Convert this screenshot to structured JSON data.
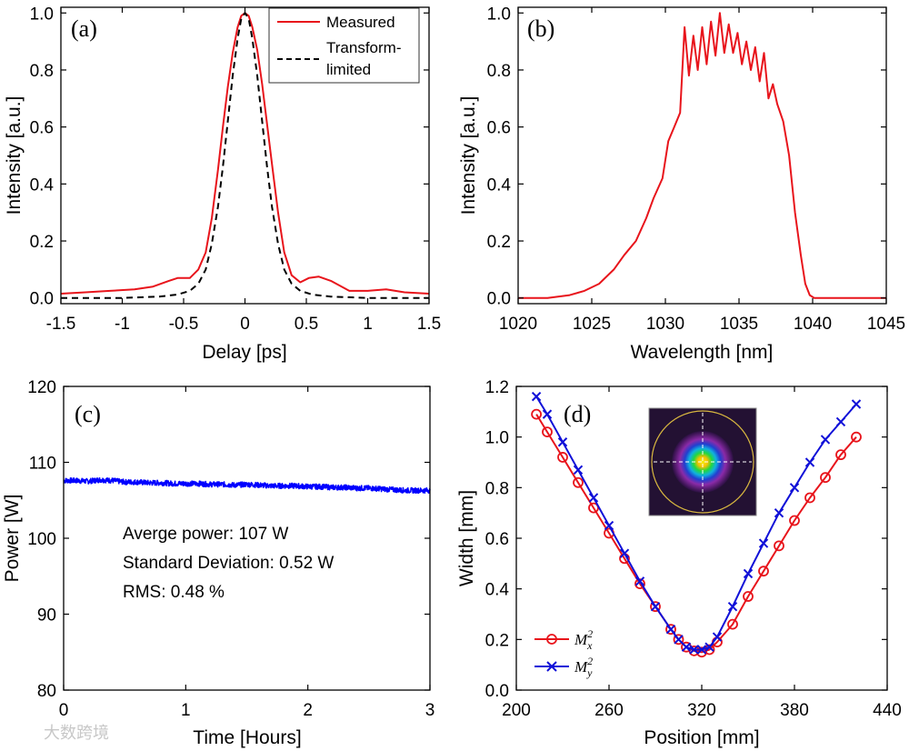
{
  "chart_data": [
    {
      "id": "a",
      "type": "line",
      "panel_label": "(a)",
      "xlabel": "Delay [ps]",
      "ylabel": "Intensity [a.u.]",
      "xlim": [
        -1.5,
        1.5
      ],
      "ylim": [
        -0.02,
        1.02
      ],
      "xticks": [
        -1.5,
        -1,
        -0.5,
        0,
        0.5,
        1,
        1.5
      ],
      "xtick_labels": [
        "-1.5",
        "-1",
        "-0.5",
        "0",
        "0.5",
        "1",
        "1.5"
      ],
      "yticks": [
        0,
        0.2,
        0.4,
        0.6,
        0.8,
        1.0
      ],
      "ytick_labels": [
        "0.0",
        "0.2",
        "0.4",
        "0.6",
        "0.8",
        "1.0"
      ],
      "legend_position": "top-right",
      "series": [
        {
          "name": "Measured",
          "color": "#e8141b",
          "style": "solid",
          "x": [
            -1.5,
            -1.3,
            -1.1,
            -0.9,
            -0.75,
            -0.62,
            -0.55,
            -0.45,
            -0.38,
            -0.32,
            -0.27,
            -0.22,
            -0.18,
            -0.14,
            -0.1,
            -0.06,
            -0.03,
            0,
            0.03,
            0.06,
            0.1,
            0.14,
            0.18,
            0.22,
            0.27,
            0.32,
            0.38,
            0.45,
            0.52,
            0.6,
            0.7,
            0.85,
            1.0,
            1.15,
            1.3,
            1.5
          ],
          "y": [
            0.015,
            0.02,
            0.025,
            0.03,
            0.04,
            0.06,
            0.07,
            0.07,
            0.1,
            0.16,
            0.28,
            0.45,
            0.6,
            0.74,
            0.86,
            0.95,
            0.99,
            1.0,
            0.99,
            0.95,
            0.87,
            0.75,
            0.61,
            0.47,
            0.3,
            0.16,
            0.08,
            0.055,
            0.07,
            0.075,
            0.06,
            0.025,
            0.025,
            0.03,
            0.02,
            0.015
          ]
        },
        {
          "name": "Transform-limited",
          "color": "#000000",
          "style": "dashed",
          "x": [
            -1.5,
            -1.0,
            -0.7,
            -0.55,
            -0.45,
            -0.38,
            -0.32,
            -0.27,
            -0.22,
            -0.18,
            -0.14,
            -0.1,
            -0.06,
            -0.03,
            0,
            0.03,
            0.06,
            0.1,
            0.14,
            0.18,
            0.22,
            0.27,
            0.32,
            0.38,
            0.45,
            0.55,
            0.7,
            1.0,
            1.5
          ],
          "y": [
            0.0,
            0.0,
            0.005,
            0.012,
            0.025,
            0.05,
            0.1,
            0.19,
            0.32,
            0.46,
            0.62,
            0.78,
            0.91,
            0.98,
            1.0,
            0.98,
            0.91,
            0.78,
            0.62,
            0.46,
            0.32,
            0.19,
            0.1,
            0.05,
            0.025,
            0.012,
            0.005,
            0.0,
            0.0
          ]
        }
      ]
    },
    {
      "id": "b",
      "type": "line",
      "panel_label": "(b)",
      "xlabel": "Wavelength [nm]",
      "ylabel": "Intensity [a.u.]",
      "xlim": [
        1020,
        1045
      ],
      "ylim": [
        -0.02,
        1.02
      ],
      "xticks": [
        1020,
        1025,
        1030,
        1035,
        1040,
        1045
      ],
      "xtick_labels": [
        "1020",
        "1025",
        "1030",
        "1035",
        "1040",
        "1045"
      ],
      "yticks": [
        0,
        0.2,
        0.4,
        0.6,
        0.8,
        1.0
      ],
      "ytick_labels": [
        "0.0",
        "0.2",
        "0.4",
        "0.6",
        "0.8",
        "1.0"
      ],
      "series": [
        {
          "name": "",
          "color": "#e8141b",
          "style": "solid",
          "x": [
            1020,
            1022,
            1023.5,
            1024.5,
            1025.5,
            1026.5,
            1027.2,
            1028,
            1028.7,
            1029.2,
            1029.8,
            1030.2,
            1030.6,
            1031.0,
            1031.3,
            1031.6,
            1031.9,
            1032.2,
            1032.5,
            1032.8,
            1033.1,
            1033.4,
            1033.7,
            1034.0,
            1034.3,
            1034.6,
            1034.9,
            1035.2,
            1035.5,
            1035.8,
            1036.1,
            1036.4,
            1036.7,
            1037.0,
            1037.3,
            1037.6,
            1038.0,
            1038.4,
            1038.8,
            1039.2,
            1039.5,
            1039.8,
            1040.1,
            1041,
            1043,
            1045
          ],
          "y": [
            0.0,
            0.0,
            0.01,
            0.025,
            0.05,
            0.1,
            0.15,
            0.2,
            0.28,
            0.35,
            0.42,
            0.55,
            0.6,
            0.65,
            0.95,
            0.78,
            0.92,
            0.8,
            0.95,
            0.82,
            0.97,
            0.85,
            1.0,
            0.86,
            0.96,
            0.86,
            0.93,
            0.82,
            0.9,
            0.8,
            0.88,
            0.76,
            0.86,
            0.7,
            0.75,
            0.68,
            0.62,
            0.5,
            0.3,
            0.15,
            0.05,
            0.01,
            0.0,
            0.0,
            0.0,
            0.0
          ]
        }
      ]
    },
    {
      "id": "c",
      "type": "line",
      "panel_label": "(c)",
      "xlabel": "Time [Hours]",
      "ylabel": "Power [W]",
      "xlim": [
        0,
        3
      ],
      "ylim": [
        80,
        120
      ],
      "xticks": [
        0,
        1,
        2,
        3
      ],
      "xtick_labels": [
        "0",
        "1",
        "2",
        "3"
      ],
      "yticks": [
        80,
        90,
        100,
        110,
        120
      ],
      "ytick_labels": [
        "80",
        "90",
        "100",
        "110",
        "120"
      ],
      "annotations": [
        "Averge power: 107 W",
        "Standard Deviation: 0.52 W",
        "RMS: 0.48 %"
      ],
      "series": [
        {
          "name": "",
          "color": "#0000ff",
          "style": "solid",
          "x": [
            0,
            0.1,
            0.2,
            0.3,
            0.4,
            0.5,
            0.6,
            0.7,
            0.8,
            0.9,
            1.0,
            1.1,
            1.2,
            1.3,
            1.4,
            1.5,
            1.6,
            1.7,
            1.8,
            1.9,
            2.0,
            2.1,
            2.2,
            2.3,
            2.4,
            2.5,
            2.6,
            2.7,
            2.8,
            2.9,
            3.0
          ],
          "y": [
            107.6,
            107.6,
            107.5,
            107.7,
            107.6,
            107.4,
            107.4,
            107.3,
            107.3,
            107.2,
            107.2,
            107.2,
            107.1,
            107.1,
            107.0,
            107.1,
            107.0,
            106.9,
            106.9,
            106.9,
            106.8,
            106.8,
            106.7,
            106.7,
            106.6,
            106.6,
            106.5,
            106.4,
            106.3,
            106.3,
            106.3
          ]
        }
      ]
    },
    {
      "id": "d",
      "type": "line",
      "panel_label": "(d)",
      "xlabel": "Position [mm]",
      "ylabel": "Width [mm]",
      "xlim": [
        200,
        440
      ],
      "ylim": [
        0,
        1.2
      ],
      "xticks": [
        200,
        260,
        320,
        380,
        440
      ],
      "xtick_labels": [
        "200",
        "260",
        "320",
        "380",
        "440"
      ],
      "yticks": [
        0,
        0.2,
        0.4,
        0.6,
        0.8,
        1.0,
        1.2
      ],
      "ytick_labels": [
        "0.0",
        "0.2",
        "0.4",
        "0.6",
        "0.8",
        "1.0",
        "1.2"
      ],
      "legend_position": "bottom-left",
      "series": [
        {
          "name": "M",
          "sub": "x",
          "sup": "2",
          "color": "#e8141b",
          "marker": "circle",
          "x": [
            213,
            220,
            230,
            240,
            250,
            260,
            270,
            280,
            290,
            300,
            305,
            310,
            315,
            320,
            325,
            330,
            340,
            350,
            360,
            370,
            380,
            390,
            400,
            410,
            420
          ],
          "y": [
            1.09,
            1.02,
            0.92,
            0.82,
            0.72,
            0.62,
            0.52,
            0.42,
            0.33,
            0.24,
            0.2,
            0.17,
            0.155,
            0.15,
            0.16,
            0.19,
            0.26,
            0.37,
            0.47,
            0.57,
            0.67,
            0.76,
            0.84,
            0.93,
            1.0
          ]
        },
        {
          "name": "M",
          "sub": "y",
          "sup": "2",
          "color": "#1010d8",
          "marker": "x",
          "x": [
            213,
            220,
            230,
            240,
            250,
            260,
            270,
            280,
            290,
            300,
            305,
            310,
            315,
            320,
            325,
            330,
            340,
            350,
            360,
            370,
            380,
            390,
            400,
            410,
            420
          ],
          "y": [
            1.16,
            1.09,
            0.98,
            0.87,
            0.76,
            0.65,
            0.54,
            0.43,
            0.33,
            0.24,
            0.2,
            0.17,
            0.16,
            0.16,
            0.17,
            0.21,
            0.33,
            0.46,
            0.58,
            0.7,
            0.8,
            0.9,
            0.99,
            1.06,
            1.13
          ]
        }
      ]
    }
  ],
  "watermark": "大数跨境"
}
